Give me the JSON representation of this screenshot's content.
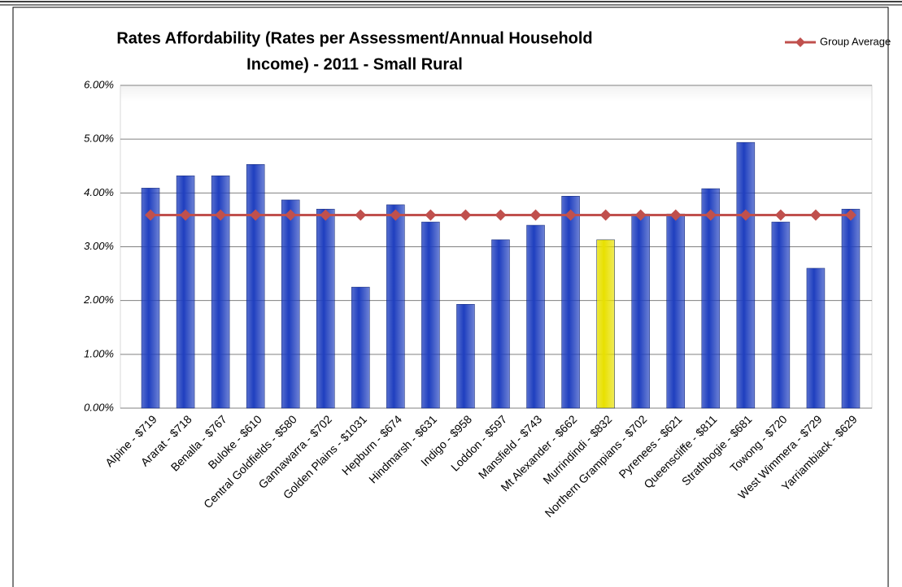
{
  "chart_data": {
    "type": "bar",
    "title": [
      "Rates Affordability (Rates per Assessment/Annual Household",
      "Income) - 2011 - Small Rural"
    ],
    "categories": [
      "Alpine - $719",
      "Ararat - $718",
      "Benalla - $767",
      "Buloke - $610",
      "Central Goldfields - $580",
      "Gannawarra - $702",
      "Golden Plains - $1031",
      "Hepburn - $674",
      "Hindmarsh - $631",
      "Indigo - $958",
      "Loddon - $597",
      "Mansfield - $743",
      "Mt Alexander - $662",
      "Murrindindi - $832",
      "Northern Grampians - $702",
      "Pyrenees - $621",
      "Queenscliffe - $811",
      "Strathbogie - $681",
      "Towong - $720",
      "West Wimmera - $729",
      "Yarriambiack - $629"
    ],
    "values": [
      4.09,
      4.32,
      4.32,
      4.53,
      3.87,
      3.7,
      2.25,
      3.78,
      3.46,
      1.93,
      3.13,
      3.4,
      3.94,
      3.13,
      3.61,
      3.61,
      4.08,
      4.94,
      3.46,
      2.6,
      3.7
    ],
    "colors": [
      "#1f3fbf",
      "#1f3fbf",
      "#1f3fbf",
      "#1f3fbf",
      "#1f3fbf",
      "#1f3fbf",
      "#1f3fbf",
      "#1f3fbf",
      "#1f3fbf",
      "#1f3fbf",
      "#1f3fbf",
      "#1f3fbf",
      "#1f3fbf",
      "#e8e000",
      "#1f3fbf",
      "#1f3fbf",
      "#1f3fbf",
      "#1f3fbf",
      "#1f3fbf",
      "#1f3fbf",
      "#1f3fbf"
    ],
    "line_series": {
      "name": "Group Average",
      "color": "#c0504d",
      "values": [
        3.59,
        3.59,
        3.59,
        3.59,
        3.59,
        3.59,
        3.59,
        3.59,
        3.59,
        3.59,
        3.59,
        3.59,
        3.59,
        3.59,
        3.59,
        3.59,
        3.59,
        3.59,
        3.59,
        3.59,
        3.59
      ]
    },
    "ylim": [
      0,
      6
    ],
    "yticks": [
      {
        "value": 0,
        "label": "0.00%"
      },
      {
        "value": 1,
        "label": "1.00%"
      },
      {
        "value": 2,
        "label": "2.00%"
      },
      {
        "value": 3,
        "label": "3.00%"
      },
      {
        "value": 4,
        "label": "4.00%"
      },
      {
        "value": 5,
        "label": "5.00%"
      },
      {
        "value": 6,
        "label": "6.00%"
      }
    ],
    "grid": true,
    "legend": "top-right"
  }
}
